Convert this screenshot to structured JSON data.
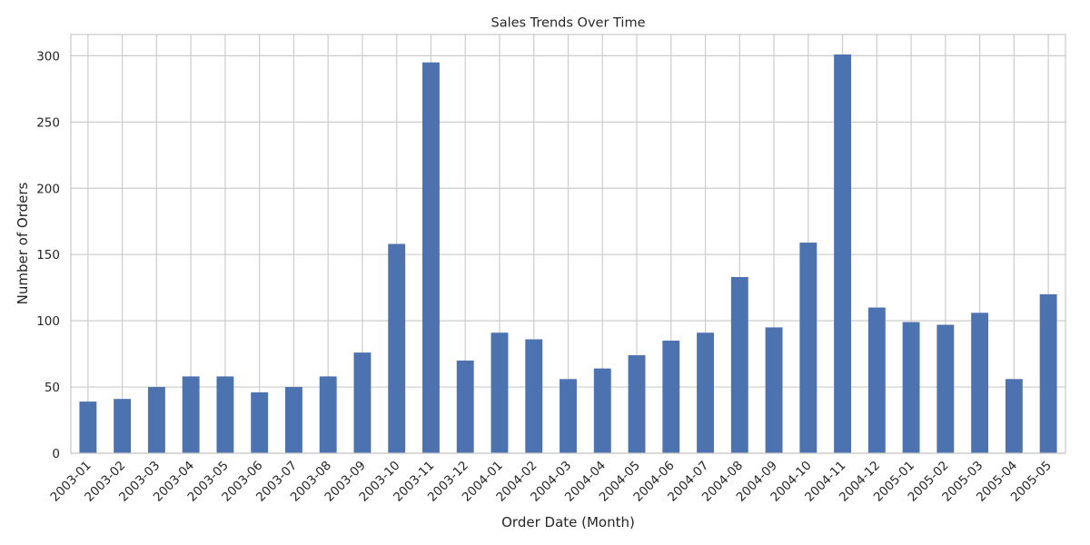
{
  "chart_data": {
    "type": "bar",
    "title": "Sales Trends Over Time",
    "xlabel": "Order Date (Month)",
    "ylabel": "Number of Orders",
    "categories": [
      "2003-01",
      "2003-02",
      "2003-03",
      "2003-04",
      "2003-05",
      "2003-06",
      "2003-07",
      "2003-08",
      "2003-09",
      "2003-10",
      "2003-11",
      "2003-12",
      "2004-01",
      "2004-02",
      "2004-03",
      "2004-04",
      "2004-05",
      "2004-06",
      "2004-07",
      "2004-08",
      "2004-09",
      "2004-10",
      "2004-11",
      "2004-12",
      "2005-01",
      "2005-02",
      "2005-03",
      "2005-04",
      "2005-05"
    ],
    "values": [
      39,
      41,
      50,
      58,
      58,
      46,
      50,
      58,
      76,
      158,
      295,
      70,
      91,
      86,
      56,
      64,
      74,
      85,
      91,
      133,
      95,
      159,
      301,
      110,
      99,
      97,
      106,
      56,
      120
    ],
    "yticks": [
      0,
      50,
      100,
      150,
      200,
      250,
      300
    ],
    "ylim": [
      0,
      316.05
    ],
    "grid": true,
    "bar_color": "#4c72b0"
  }
}
